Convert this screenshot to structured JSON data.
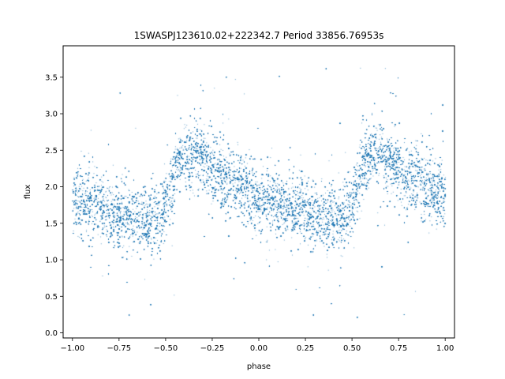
{
  "chart_data": {
    "type": "scatter",
    "title": "1SWASPJ123610.02+222342.7 Period 33856.76953s",
    "xlabel": "phase",
    "ylabel": "flux",
    "xlim": [
      -1.05,
      1.05
    ],
    "ylim": [
      -0.07,
      3.93
    ],
    "xticks": [
      -1.0,
      -0.75,
      -0.5,
      -0.25,
      0.0,
      0.25,
      0.5,
      0.75,
      1.0
    ],
    "xtick_labels": [
      "−1.00",
      "−0.75",
      "−0.50",
      "−0.25",
      "0.00",
      "0.25",
      "0.50",
      "0.75",
      "1.00"
    ],
    "yticks": [
      0.0,
      0.5,
      1.0,
      1.5,
      2.0,
      2.5,
      3.0,
      3.5
    ],
    "ytick_labels": [
      "0.0",
      "0.5",
      "1.0",
      "1.5",
      "2.0",
      "2.5",
      "3.0",
      "3.5"
    ],
    "point_color": "#1f77b4",
    "grid": false,
    "legend": "none",
    "series_profile": {
      "x": [
        -1.0,
        -0.9,
        -0.8,
        -0.7,
        -0.6,
        -0.55,
        -0.5,
        -0.45,
        -0.4,
        -0.35,
        -0.3,
        -0.2,
        -0.1,
        0.0,
        0.1,
        0.2,
        0.3,
        0.4,
        0.45,
        0.5,
        0.55,
        0.6,
        0.65,
        0.7,
        0.8,
        0.9,
        1.0
      ],
      "flux": [
        1.8,
        1.75,
        1.65,
        1.6,
        1.55,
        1.55,
        1.75,
        2.2,
        2.45,
        2.45,
        2.35,
        2.15,
        2.0,
        1.85,
        1.75,
        1.68,
        1.62,
        1.55,
        1.58,
        1.8,
        2.25,
        2.45,
        2.45,
        2.35,
        2.15,
        2.0,
        1.85
      ],
      "scatter_sigma": 0.22,
      "n_points": 26000
    }
  }
}
